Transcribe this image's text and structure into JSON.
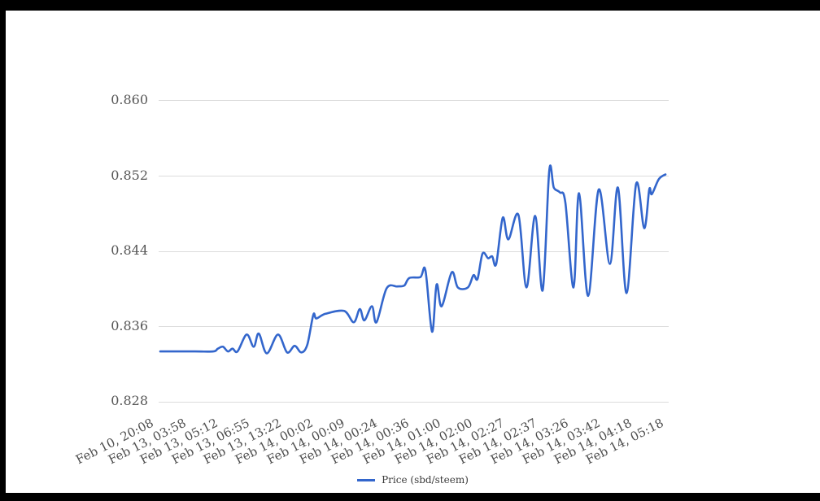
{
  "window": {
    "frame_color": "#000000",
    "page_background": "#ffffff"
  },
  "chart": {
    "y_axis": {
      "labels": [
        "0.860",
        "0.852",
        "0.844",
        "0.836",
        "0.828"
      ]
    },
    "x_axis": {
      "labels": [
        "Feb 10, 20:08",
        "Feb 13, 03:58",
        "Feb 13, 05:12",
        "Feb 13, 06:55",
        "Feb 13, 13:22",
        "Feb 14, 00:02",
        "Feb 14, 00:09",
        "Feb 14, 00:24",
        "Feb 14, 00:36",
        "Feb 14, 01:00",
        "Feb 14, 02:00",
        "Feb 14, 02:27",
        "Feb 14, 02:37",
        "Feb 14, 03:26",
        "Feb 14, 03:42",
        "Feb 14, 04:18",
        "Feb 14, 05:18"
      ]
    },
    "legend": {
      "label": "Price (sbd/steem)"
    },
    "colors": {
      "line": "#3366cc",
      "gridline": "#dcdcdc",
      "axis_text": "#575757",
      "legend_text": "#3b3b3b"
    }
  },
  "chart_data": {
    "type": "line",
    "title": "",
    "xlabel": "",
    "ylabel": "",
    "legend_entries": [
      "Price (sbd/steem)"
    ],
    "legend_position": "bottom",
    "grid": true,
    "smoothed": true,
    "y_ticks": [
      0.828,
      0.836,
      0.844,
      0.852,
      0.86
    ],
    "ylim": [
      0.828,
      0.86
    ],
    "x_tick_labels": [
      "Feb 10, 20:08",
      "Feb 13, 03:58",
      "Feb 13, 05:12",
      "Feb 13, 06:55",
      "Feb 13, 13:22",
      "Feb 14, 00:02",
      "Feb 14, 00:09",
      "Feb 14, 00:24",
      "Feb 14, 00:36",
      "Feb 14, 01:00",
      "Feb 14, 02:00",
      "Feb 14, 02:27",
      "Feb 14, 02:37",
      "Feb 14, 03:26",
      "Feb 14, 03:42",
      "Feb 14, 04:18",
      "Feb 14, 05:18"
    ],
    "series": [
      {
        "name": "Price (sbd/steem)",
        "points_xfraction_value": [
          [
            0.0,
            0.8333
          ],
          [
            0.069,
            0.8333
          ],
          [
            0.105,
            0.8333
          ],
          [
            0.114,
            0.8336
          ],
          [
            0.124,
            0.8338
          ],
          [
            0.134,
            0.8333
          ],
          [
            0.143,
            0.8336
          ],
          [
            0.153,
            0.8333
          ],
          [
            0.171,
            0.8351
          ],
          [
            0.185,
            0.8338
          ],
          [
            0.195,
            0.8352
          ],
          [
            0.211,
            0.8331
          ],
          [
            0.233,
            0.8351
          ],
          [
            0.251,
            0.8332
          ],
          [
            0.266,
            0.8339
          ],
          [
            0.279,
            0.8332
          ],
          [
            0.291,
            0.834
          ],
          [
            0.303,
            0.8372
          ],
          [
            0.309,
            0.8368
          ],
          [
            0.327,
            0.8373
          ],
          [
            0.364,
            0.8376
          ],
          [
            0.383,
            0.8364
          ],
          [
            0.395,
            0.8378
          ],
          [
            0.404,
            0.8366
          ],
          [
            0.419,
            0.8381
          ],
          [
            0.428,
            0.8364
          ],
          [
            0.448,
            0.84
          ],
          [
            0.469,
            0.8402
          ],
          [
            0.483,
            0.8403
          ],
          [
            0.493,
            0.8411
          ],
          [
            0.515,
            0.8412
          ],
          [
            0.525,
            0.8419
          ],
          [
            0.538,
            0.8354
          ],
          [
            0.547,
            0.8404
          ],
          [
            0.557,
            0.8381
          ],
          [
            0.577,
            0.8417
          ],
          [
            0.589,
            0.8401
          ],
          [
            0.609,
            0.8401
          ],
          [
            0.62,
            0.8414
          ],
          [
            0.628,
            0.841
          ],
          [
            0.638,
            0.8437
          ],
          [
            0.649,
            0.8432
          ],
          [
            0.657,
            0.8434
          ],
          [
            0.665,
            0.8426
          ],
          [
            0.678,
            0.8475
          ],
          [
            0.689,
            0.8452
          ],
          [
            0.709,
            0.8478
          ],
          [
            0.725,
            0.8401
          ],
          [
            0.742,
            0.8477
          ],
          [
            0.757,
            0.8398
          ],
          [
            0.77,
            0.8525
          ],
          [
            0.779,
            0.8507
          ],
          [
            0.791,
            0.8502
          ],
          [
            0.802,
            0.8491
          ],
          [
            0.818,
            0.8401
          ],
          [
            0.829,
            0.8501
          ],
          [
            0.847,
            0.8392
          ],
          [
            0.868,
            0.8505
          ],
          [
            0.89,
            0.8426
          ],
          [
            0.906,
            0.8507
          ],
          [
            0.923,
            0.8395
          ],
          [
            0.942,
            0.8511
          ],
          [
            0.958,
            0.8464
          ],
          [
            0.968,
            0.8505
          ],
          [
            0.973,
            0.85
          ],
          [
            0.987,
            0.8516
          ],
          [
            1.0,
            0.8521
          ]
        ]
      }
    ]
  }
}
